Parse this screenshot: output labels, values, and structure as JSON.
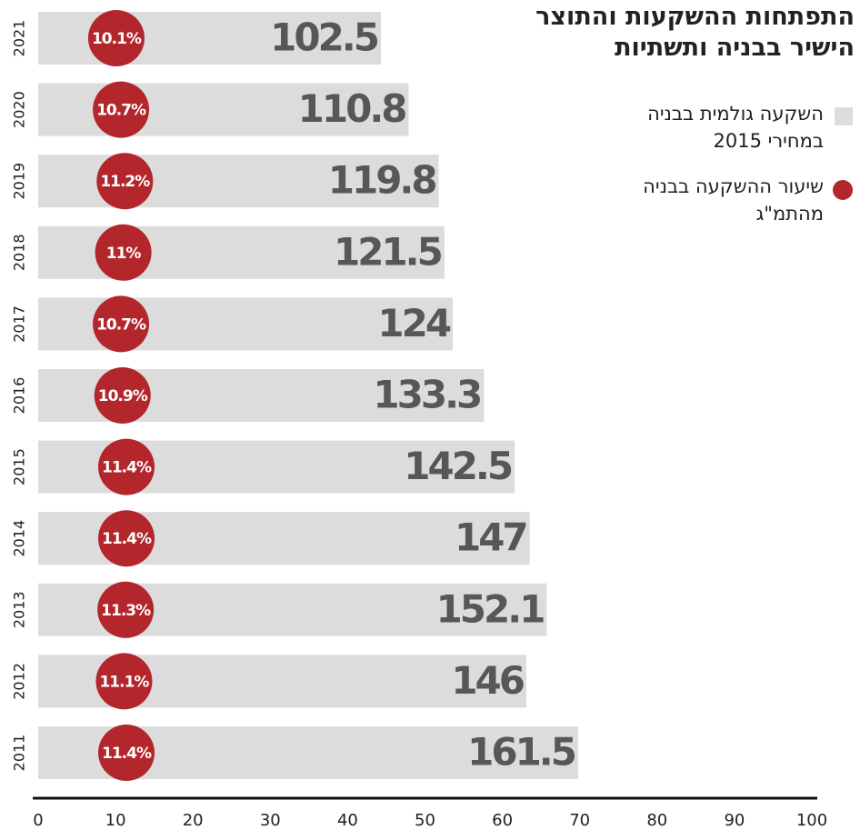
{
  "chart_data": {
    "type": "bar",
    "title": "התפתחות ההשקעות והתוצר הישיר בבניה ותשתיות",
    "categories": [
      "2021",
      "2020",
      "2019",
      "2018",
      "2017",
      "2016",
      "2015",
      "2014",
      "2013",
      "2012",
      "2011"
    ],
    "series": [
      {
        "name": "השקעה גולמית בבניה במחירי 2015",
        "color": "#dcdcdc",
        "values": [
          102.5,
          110.8,
          119.8,
          121.5,
          124,
          133.3,
          142.5,
          147,
          152.1,
          146,
          161.5
        ]
      },
      {
        "name": "שיעור ההשקעה בבניה מהתמ\"ג",
        "color": "#b3262b",
        "values": [
          10.1,
          10.7,
          11.2,
          11,
          10.7,
          10.9,
          11.4,
          11.4,
          11.3,
          11.1,
          11.4
        ],
        "value_labels": [
          "10.1%",
          "10.7%",
          "11.2%",
          "11%",
          "10.7%",
          "10.9%",
          "11.4%",
          "11.4%",
          "11.3%",
          "11.1%",
          "11.4%"
        ]
      }
    ],
    "xlim": [
      0,
      100
    ],
    "xticks": [
      0,
      10,
      20,
      30,
      40,
      50,
      60,
      70,
      80,
      90,
      100
    ]
  }
}
